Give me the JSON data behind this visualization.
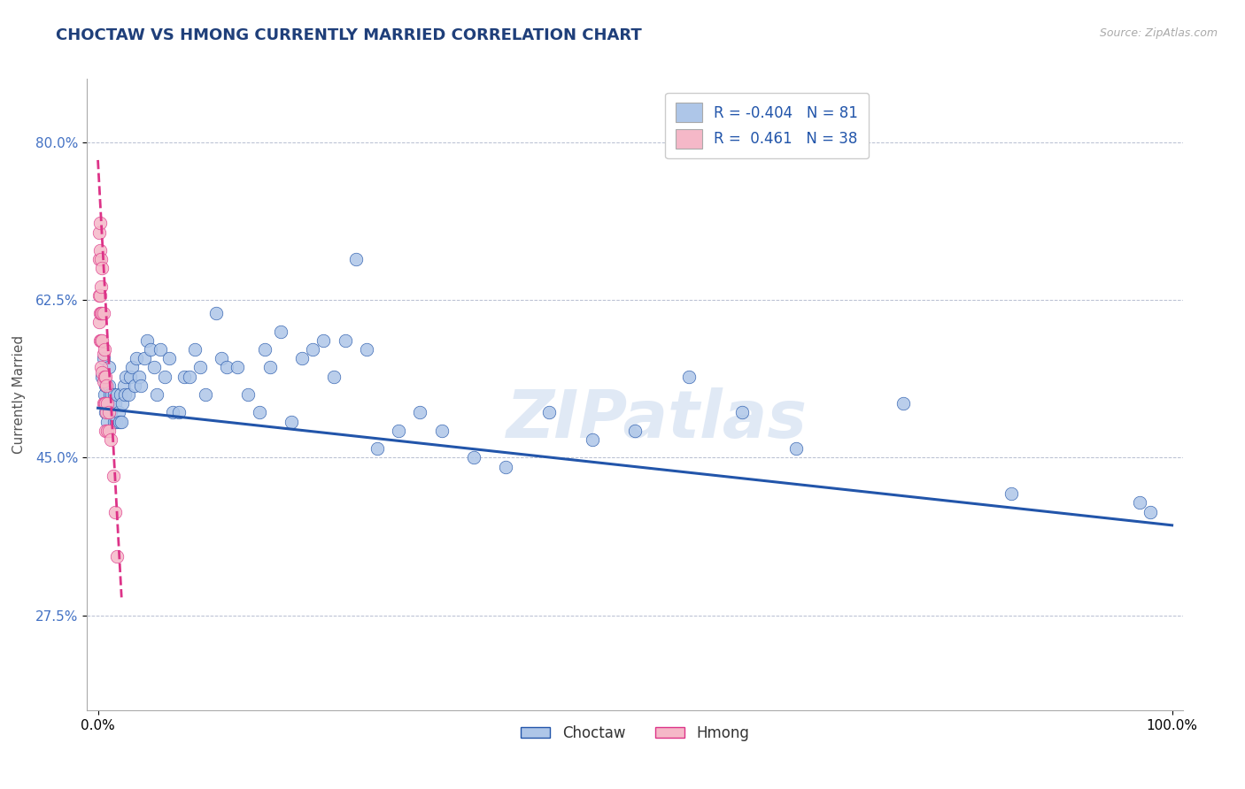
{
  "title": "CHOCTAW VS HMONG CURRENTLY MARRIED CORRELATION CHART",
  "source": "Source: ZipAtlas.com",
  "xlabel": "",
  "ylabel": "Currently Married",
  "xlim": [
    -0.01,
    1.01
  ],
  "ylim": [
    0.17,
    0.87
  ],
  "yticks": [
    0.275,
    0.45,
    0.625,
    0.8
  ],
  "ytick_labels": [
    "27.5%",
    "45.0%",
    "62.5%",
    "80.0%"
  ],
  "xticks": [
    0.0,
    1.0
  ],
  "xtick_labels": [
    "0.0%",
    "100.0%"
  ],
  "legend_r1": "R = -0.404",
  "legend_n1": "N = 81",
  "legend_r2": "R =  0.461",
  "legend_n2": "N = 38",
  "choctaw_color": "#aec6e8",
  "hmong_color": "#f5b8c8",
  "trend_choctaw_color": "#2255aa",
  "trend_hmong_color": "#dd3388",
  "title_color": "#1f3f7a",
  "axis_label_color": "#4472c4",
  "title_fontsize": 13,
  "label_fontsize": 11,
  "watermark": "ZIPatlas",
  "choctaw_x": [
    0.004,
    0.005,
    0.006,
    0.007,
    0.007,
    0.008,
    0.009,
    0.01,
    0.01,
    0.011,
    0.012,
    0.013,
    0.014,
    0.015,
    0.015,
    0.016,
    0.017,
    0.018,
    0.019,
    0.02,
    0.021,
    0.022,
    0.023,
    0.024,
    0.025,
    0.026,
    0.028,
    0.03,
    0.032,
    0.034,
    0.036,
    0.038,
    0.04,
    0.043,
    0.046,
    0.049,
    0.052,
    0.055,
    0.058,
    0.062,
    0.066,
    0.07,
    0.075,
    0.08,
    0.085,
    0.09,
    0.095,
    0.1,
    0.11,
    0.115,
    0.12,
    0.13,
    0.14,
    0.15,
    0.155,
    0.16,
    0.17,
    0.18,
    0.19,
    0.2,
    0.21,
    0.22,
    0.23,
    0.24,
    0.25,
    0.26,
    0.28,
    0.3,
    0.32,
    0.35,
    0.38,
    0.42,
    0.46,
    0.5,
    0.55,
    0.6,
    0.65,
    0.75,
    0.85,
    0.97,
    0.98
  ],
  "choctaw_y": [
    0.54,
    0.56,
    0.52,
    0.5,
    0.53,
    0.51,
    0.49,
    0.53,
    0.55,
    0.52,
    0.5,
    0.52,
    0.51,
    0.49,
    0.52,
    0.51,
    0.49,
    0.52,
    0.5,
    0.49,
    0.52,
    0.49,
    0.51,
    0.53,
    0.52,
    0.54,
    0.52,
    0.54,
    0.55,
    0.53,
    0.56,
    0.54,
    0.53,
    0.56,
    0.58,
    0.57,
    0.55,
    0.52,
    0.57,
    0.54,
    0.56,
    0.5,
    0.5,
    0.54,
    0.54,
    0.57,
    0.55,
    0.52,
    0.61,
    0.56,
    0.55,
    0.55,
    0.52,
    0.5,
    0.57,
    0.55,
    0.59,
    0.49,
    0.56,
    0.57,
    0.58,
    0.54,
    0.58,
    0.67,
    0.57,
    0.46,
    0.48,
    0.5,
    0.48,
    0.45,
    0.44,
    0.5,
    0.47,
    0.48,
    0.54,
    0.5,
    0.46,
    0.51,
    0.41,
    0.4,
    0.39
  ],
  "hmong_x": [
    0.001,
    0.001,
    0.001,
    0.001,
    0.002,
    0.002,
    0.002,
    0.002,
    0.002,
    0.003,
    0.003,
    0.003,
    0.003,
    0.003,
    0.004,
    0.004,
    0.004,
    0.004,
    0.005,
    0.005,
    0.005,
    0.005,
    0.006,
    0.006,
    0.006,
    0.007,
    0.007,
    0.007,
    0.008,
    0.008,
    0.009,
    0.009,
    0.01,
    0.01,
    0.012,
    0.014,
    0.016,
    0.018
  ],
  "hmong_y": [
    0.7,
    0.67,
    0.63,
    0.6,
    0.71,
    0.68,
    0.63,
    0.61,
    0.58,
    0.67,
    0.64,
    0.61,
    0.58,
    0.55,
    0.66,
    0.61,
    0.58,
    0.545,
    0.61,
    0.565,
    0.535,
    0.51,
    0.57,
    0.54,
    0.51,
    0.54,
    0.51,
    0.48,
    0.53,
    0.5,
    0.51,
    0.48,
    0.5,
    0.48,
    0.47,
    0.43,
    0.39,
    0.34
  ],
  "choctaw_trend_x0": 0.0,
  "choctaw_trend_y0": 0.505,
  "choctaw_trend_x1": 1.0,
  "choctaw_trend_y1": 0.375,
  "hmong_trend_x0": 0.0,
  "hmong_trend_y0": 0.78,
  "hmong_trend_x1": 0.022,
  "hmong_trend_y1": 0.295
}
